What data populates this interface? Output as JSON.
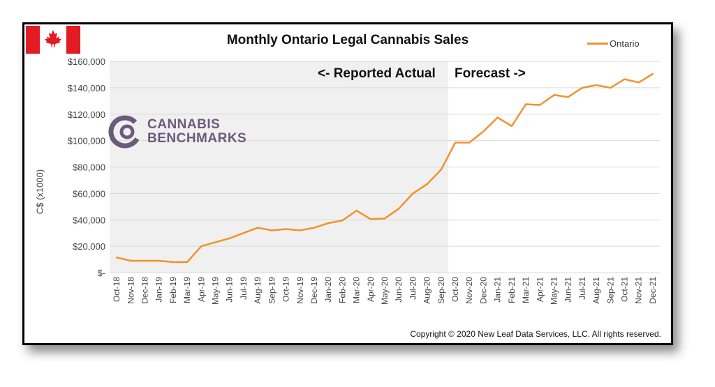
{
  "chart_data": {
    "type": "line",
    "title": "Monthly Ontario Legal Cannabis Sales",
    "ylabel": "C$ (x1000)",
    "xlabel": "",
    "ylim": [
      0,
      160000
    ],
    "yticks": [
      0,
      20000,
      40000,
      60000,
      80000,
      100000,
      120000,
      140000,
      160000
    ],
    "ytick_labels": [
      "$-",
      "$20,000",
      "$40,000",
      "$60,000",
      "$80,000",
      "$100,000",
      "$120,000",
      "$140,000",
      "$160,000"
    ],
    "grid": true,
    "legend_position": "top-right",
    "categories": [
      "Oct-18",
      "Nov-18",
      "Dec-18",
      "Jan-19",
      "Feb-19",
      "Mar-19",
      "Apr-19",
      "May-19",
      "Jun-19",
      "Jul-19",
      "Aug-19",
      "Sep-19",
      "Oct-19",
      "Nov-19",
      "Dec-19",
      "Jan-20",
      "Feb-20",
      "Mar-20",
      "Apr-20",
      "May-20",
      "Jun-20",
      "Jul-20",
      "Aug-20",
      "Sep-20",
      "Oct-20",
      "Nov-20",
      "Dec-20",
      "Jan-21",
      "Feb-21",
      "Mar-21",
      "Apr-21",
      "May-21",
      "Jun-21",
      "Jul-21",
      "Aug-21",
      "Sep-21",
      "Oct-21",
      "Nov-21",
      "Dec-21"
    ],
    "series": [
      {
        "name": "Ontario",
        "color": "#f0932b",
        "values": [
          11500,
          9000,
          9000,
          9000,
          8000,
          8000,
          20000,
          23000,
          26000,
          30000,
          34000,
          32000,
          33000,
          32000,
          34000,
          37500,
          39500,
          47000,
          40500,
          41000,
          48500,
          60000,
          67000,
          78000,
          98500,
          98500,
          107000,
          117500,
          111000,
          127500,
          127000,
          134500,
          133000,
          140000,
          142000,
          140000,
          146500,
          144000,
          150500
        ]
      }
    ],
    "shaded_region": {
      "from": "Oct-18",
      "to": "Sep-20",
      "color": "#f0f0f0"
    },
    "annotations": [
      "<- Reported Actual",
      "Forecast ->"
    ]
  },
  "flag": {
    "name": "canada-flag-icon",
    "red": "#e31b23",
    "white": "#ffffff"
  },
  "logo": {
    "line1": "CANNABIS",
    "line2": "BENCHMARKS",
    "color": "#6b5a7a"
  },
  "copyright": "Copyright © 2020 New Leaf Data Services, LLC.  All rights reserved."
}
